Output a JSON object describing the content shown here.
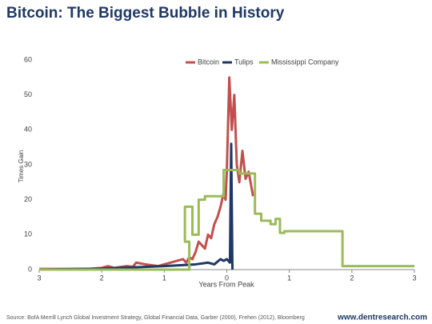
{
  "chart_data": {
    "type": "line",
    "title": "Bitcoin: The Biggest Bubble in History",
    "x_label": "Years From Peak",
    "y_label": "Times Gain",
    "xlim": [
      -3,
      3
    ],
    "xticks": [
      {
        "value": -3,
        "label": "3"
      },
      {
        "value": -2,
        "label": "2"
      },
      {
        "value": -1,
        "label": "1"
      },
      0,
      1,
      2,
      3
    ],
    "ylim": [
      0,
      60
    ],
    "yticks": [
      0,
      10,
      20,
      30,
      40,
      50,
      60
    ],
    "grid": false,
    "legend": "top",
    "series": [
      {
        "name": "Bitcoin",
        "color": "#c0504d",
        "x": [
          -3,
          -2.2,
          -2,
          -1.9,
          -1.8,
          -1.6,
          -1.5,
          -1.45,
          -1.3,
          -1.1,
          -1.0,
          -0.9,
          -0.8,
          -0.7,
          -0.65,
          -0.6,
          -0.55,
          -0.5,
          -0.45,
          -0.4,
          -0.35,
          -0.3,
          -0.25,
          -0.2,
          -0.15,
          -0.1,
          -0.05,
          -0.02,
          0,
          0.04,
          0.08,
          0.12,
          0.16,
          0.2,
          0.25,
          0.3,
          0.35,
          0.42
        ],
        "values": [
          0.2,
          0.2,
          0.5,
          1,
          0.5,
          1,
          0.8,
          2,
          1.5,
          1,
          1.5,
          2,
          2.5,
          3,
          2,
          3.5,
          3,
          5,
          8,
          7,
          6,
          10,
          9,
          13,
          15,
          18,
          22,
          20,
          28,
          55,
          40,
          50,
          30,
          25,
          34,
          26,
          28,
          21
        ]
      },
      {
        "name": "Tulips",
        "color": "#1f3864",
        "x": [
          -3,
          -2,
          -1,
          -0.5,
          -0.3,
          -0.2,
          -0.1,
          -0.05,
          0,
          0.05,
          0.07,
          0.09
        ],
        "values": [
          0,
          0.3,
          1,
          1.5,
          2,
          1.5,
          3,
          2.5,
          3,
          2,
          36,
          0
        ]
      },
      {
        "name": "Mississippi Company",
        "color": "#9bbb59",
        "x": [
          -3,
          -0.6,
          -0.6,
          -0.67,
          -0.67,
          -0.55,
          -0.55,
          -0.45,
          -0.45,
          -0.35,
          -0.35,
          -0.05,
          -0.05,
          0.2,
          0.2,
          0.45,
          0.45,
          0.55,
          0.55,
          0.7,
          0.7,
          0.78,
          0.78,
          0.85,
          0.85,
          0.92,
          0.92,
          1.85,
          1.85,
          3
        ],
        "values": [
          0,
          0,
          8,
          8,
          18,
          18,
          10,
          10,
          20,
          20,
          21,
          21,
          28.5,
          28.5,
          27.5,
          27.5,
          16,
          16,
          14,
          14,
          13,
          13,
          14.5,
          14.5,
          10.5,
          10.5,
          11,
          11,
          1,
          1
        ]
      }
    ],
    "source": "Source: BofA Merrill Lynch Global Investment Strategy, Global Financial Data, Garber (2000), Frehen (2012), Bloomberg",
    "website": "www.dentresearch.com"
  }
}
